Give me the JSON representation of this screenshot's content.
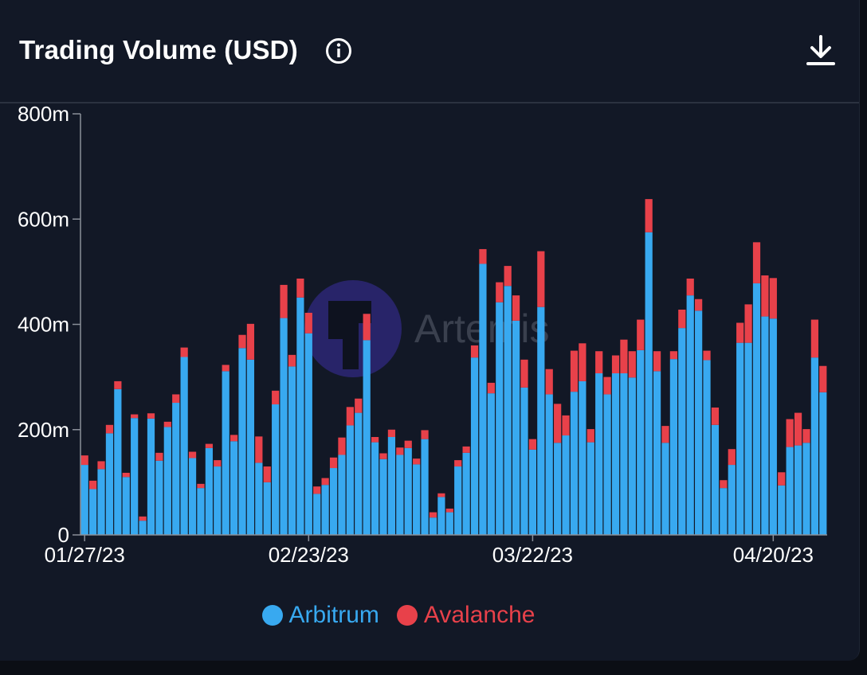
{
  "header": {
    "title": "Trading Volume (USD)",
    "info_icon": "info-icon",
    "download_icon": "download-icon"
  },
  "watermark": {
    "text": "Artemis"
  },
  "colors": {
    "background": "#121826",
    "arbitrum": "#38a9f0",
    "avalanche": "#e8414a",
    "axis": "#8a8f99",
    "text": "#ffffff"
  },
  "chart_data": {
    "type": "bar",
    "stacked": true,
    "ylim": [
      0,
      800
    ],
    "yunit": "m",
    "y_ticks": [
      "0",
      "200m",
      "400m",
      "600m",
      "800m"
    ],
    "x_ticks": [
      {
        "label": "01/27/23",
        "index": 0
      },
      {
        "label": "02/23/23",
        "index": 27
      },
      {
        "label": "03/22/23",
        "index": 54
      },
      {
        "label": "04/20/23",
        "index": 83
      }
    ],
    "grid": false,
    "legend_position": "bottom",
    "series": [
      {
        "name": "Arbitrum",
        "color": "#38a9f0",
        "values": [
          133,
          87,
          125,
          193,
          277,
          110,
          222,
          27,
          221,
          141,
          205,
          251,
          338,
          146,
          89,
          165,
          130,
          311,
          178,
          355,
          333,
          137,
          100,
          248,
          412,
          320,
          451,
          383,
          78,
          95,
          127,
          152,
          208,
          232,
          370,
          176,
          144,
          186,
          152,
          165,
          134,
          182,
          33,
          72,
          43,
          130,
          156,
          337,
          515,
          269,
          442,
          473,
          407,
          280,
          162,
          433,
          267,
          175,
          189,
          272,
          292,
          176,
          307,
          267,
          307,
          307,
          299,
          351,
          575,
          311,
          175,
          334,
          393,
          455,
          426,
          332,
          209,
          89,
          133,
          365,
          365,
          478,
          415,
          411,
          94,
          167,
          170,
          175,
          337,
          271
        ]
      },
      {
        "name": "Avalanche",
        "color": "#e8414a",
        "values": [
          18,
          16,
          15,
          16,
          15,
          8,
          7,
          8,
          10,
          15,
          10,
          16,
          18,
          12,
          8,
          8,
          12,
          12,
          12,
          25,
          68,
          50,
          30,
          26,
          63,
          22,
          36,
          39,
          14,
          13,
          20,
          33,
          35,
          27,
          50,
          10,
          11,
          14,
          14,
          14,
          11,
          17,
          10,
          7,
          7,
          12,
          12,
          23,
          28,
          20,
          38,
          38,
          48,
          53,
          20,
          106,
          48,
          74,
          38,
          78,
          72,
          25,
          42,
          33,
          34,
          64,
          50,
          58,
          63,
          38,
          32,
          15,
          35,
          32,
          22,
          18,
          33,
          15,
          30,
          38,
          73,
          78,
          78,
          77,
          25,
          53,
          62,
          26,
          72,
          50
        ]
      }
    ]
  }
}
